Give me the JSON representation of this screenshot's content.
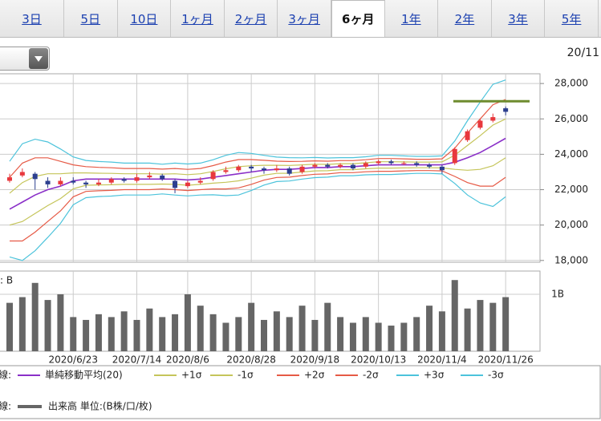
{
  "tabs": [
    "3日",
    "5日",
    "10日",
    "1ヶ月",
    "2ヶ月",
    "3ヶ月",
    "6ヶ月",
    "1年",
    "2年",
    "3年",
    "5年"
  ],
  "selected_tab": 6,
  "date_label": "20/11",
  "chart_data": {
    "type": "candlestick",
    "categories": [
      null,
      null,
      null,
      null,
      null,
      "2020/6/23",
      null,
      null,
      null,
      null,
      "2020/7/14",
      null,
      null,
      null,
      "2020/8/6",
      null,
      null,
      null,
      null,
      "2020/8/28",
      null,
      null,
      null,
      null,
      "2020/9/18",
      null,
      null,
      null,
      null,
      "2020/10/13",
      null,
      null,
      null,
      null,
      "2020/11/4",
      null,
      null,
      null,
      null,
      "2020/11/26"
    ],
    "up_color": "#e8383d",
    "down_color": "#2c3f8f",
    "open": [
      22500,
      22800,
      22900,
      22500,
      22300,
      22500,
      22400,
      22300,
      22400,
      22600,
      22500,
      22700,
      22800,
      22500,
      22200,
      22400,
      22600,
      23000,
      23100,
      23300,
      23200,
      23100,
      23200,
      23000,
      23300,
      23400,
      23300,
      23400,
      23300,
      23500,
      23600,
      23500,
      23500,
      23400,
      23300,
      23500,
      24800,
      25500,
      25900,
      26600
    ],
    "high": [
      22900,
      23200,
      23000,
      22700,
      22700,
      22700,
      22500,
      22600,
      22700,
      22700,
      22900,
      23000,
      22900,
      22600,
      22500,
      22700,
      23100,
      23300,
      23400,
      23400,
      23300,
      23400,
      23300,
      23400,
      23500,
      23500,
      23500,
      23500,
      23600,
      23700,
      23700,
      23600,
      23600,
      23500,
      23400,
      24400,
      25400,
      26000,
      26300,
      26700
    ],
    "low": [
      22400,
      22700,
      22000,
      22100,
      22200,
      22300,
      22100,
      22200,
      22300,
      22400,
      22400,
      22600,
      22500,
      21800,
      22100,
      22300,
      22500,
      22900,
      23000,
      23000,
      22900,
      23000,
      22800,
      22900,
      23200,
      23200,
      23200,
      23100,
      23200,
      23400,
      23400,
      23400,
      23300,
      23200,
      22900,
      23400,
      24700,
      25400,
      25800,
      26200
    ],
    "close": [
      22700,
      23000,
      22600,
      22300,
      22500,
      22400,
      22300,
      22400,
      22600,
      22500,
      22700,
      22800,
      22600,
      22100,
      22400,
      22500,
      23000,
      23100,
      23300,
      23200,
      23100,
      23200,
      22900,
      23300,
      23400,
      23300,
      23400,
      23200,
      23500,
      23600,
      23500,
      23500,
      23400,
      23300,
      23100,
      24300,
      25300,
      25900,
      26100,
      26400
    ],
    "series": [
      {
        "name": "単純移動平均(20)",
        "color": "#8a2fc8",
        "values": [
          20900,
          21300,
          21700,
          22000,
          22200,
          22500,
          22600,
          22600,
          22600,
          22600,
          22600,
          22600,
          22600,
          22600,
          22550,
          22600,
          22700,
          22800,
          22900,
          23000,
          23100,
          23150,
          23150,
          23200,
          23250,
          23250,
          23300,
          23300,
          23350,
          23400,
          23400,
          23400,
          23400,
          23400,
          23400,
          23550,
          23800,
          24100,
          24500,
          24900
        ]
      },
      {
        "name": "+1σ",
        "color": "#c5c55a",
        "values": [
          21800,
          22400,
          22750,
          22900,
          22900,
          22950,
          22950,
          22930,
          22920,
          22900,
          22900,
          22900,
          22880,
          22900,
          22850,
          22900,
          23030,
          23180,
          23300,
          23350,
          23380,
          23380,
          23370,
          23400,
          23440,
          23430,
          23470,
          23470,
          23520,
          23580,
          23580,
          23570,
          23560,
          23560,
          23570,
          23950,
          24500,
          25050,
          25650,
          26000
        ]
      },
      {
        "name": "-1σ",
        "color": "#c5c55a",
        "values": [
          20000,
          20200,
          20650,
          21100,
          21500,
          22050,
          22250,
          22270,
          22280,
          22300,
          22300,
          22300,
          22320,
          22300,
          22250,
          22300,
          22370,
          22420,
          22500,
          22650,
          22820,
          22920,
          22930,
          23000,
          23060,
          23070,
          23130,
          23130,
          23180,
          23220,
          23220,
          23230,
          23240,
          23240,
          23230,
          23150,
          23100,
          23150,
          23350,
          23800
        ]
      },
      {
        "name": "+2σ",
        "color": "#e65a46",
        "values": [
          22700,
          23500,
          23800,
          23800,
          23600,
          23400,
          23300,
          23260,
          23240,
          23200,
          23200,
          23200,
          23160,
          23200,
          23150,
          23200,
          23360,
          23560,
          23700,
          23700,
          23660,
          23610,
          23590,
          23600,
          23630,
          23610,
          23640,
          23640,
          23690,
          23760,
          23760,
          23740,
          23720,
          23720,
          23740,
          24350,
          25200,
          26000,
          26800,
          27100
        ]
      },
      {
        "name": "-2σ",
        "color": "#e65a46",
        "values": [
          19100,
          19100,
          19600,
          20200,
          20800,
          21600,
          21900,
          21940,
          21960,
          22000,
          22000,
          22000,
          22040,
          22000,
          21950,
          22000,
          22040,
          22040,
          22100,
          22300,
          22540,
          22690,
          22710,
          22800,
          22870,
          22890,
          22960,
          22960,
          23010,
          23040,
          23040,
          23060,
          23080,
          23080,
          23060,
          22750,
          22400,
          22200,
          22200,
          22700
        ]
      },
      {
        "name": "+3σ",
        "color": "#4cc3db",
        "values": [
          23600,
          24600,
          24850,
          24700,
          24300,
          23850,
          23650,
          23590,
          23560,
          23500,
          23500,
          23500,
          23440,
          23500,
          23450,
          23500,
          23690,
          23940,
          24100,
          24050,
          23940,
          23840,
          23810,
          23800,
          23820,
          23790,
          23810,
          23810,
          23860,
          23940,
          23940,
          23910,
          23880,
          23880,
          23910,
          24750,
          25900,
          26950,
          27950,
          28200
        ]
      },
      {
        "name": "-3σ",
        "color": "#4cc3db",
        "values": [
          18200,
          18000,
          18550,
          19300,
          20100,
          21150,
          21550,
          21610,
          21640,
          21700,
          21700,
          21700,
          21760,
          21700,
          21650,
          21700,
          21710,
          21660,
          21700,
          21950,
          22260,
          22460,
          22490,
          22600,
          22680,
          22710,
          22790,
          22790,
          22840,
          22860,
          22860,
          22890,
          22920,
          22920,
          22890,
          22350,
          21700,
          21250,
          21050,
          21600
        ]
      }
    ],
    "hline": {
      "value": 27000,
      "color": "#6e8c2f"
    },
    "ylim": [
      17900,
      28550
    ],
    "yticks": [
      {
        "value": 18000,
        "label": "18,000"
      },
      {
        "value": 20000,
        "label": "20,000"
      },
      {
        "value": 22000,
        "label": "22,000"
      },
      {
        "value": 24000,
        "label": "24,000"
      },
      {
        "value": 26000,
        "label": "26,000"
      },
      {
        "value": 28000,
        "label": "28,000"
      }
    ],
    "volume": {
      "name": "出来高 単位:(B株/口/枚)",
      "color": "#666666",
      "axis_label": ": B",
      "values": [
        0.85,
        0.95,
        1.2,
        0.9,
        1.0,
        0.6,
        0.55,
        0.65,
        0.6,
        0.7,
        0.55,
        0.75,
        0.6,
        0.65,
        1.0,
        0.8,
        0.65,
        0.5,
        0.6,
        0.85,
        0.55,
        0.7,
        0.6,
        0.8,
        0.55,
        0.85,
        0.6,
        0.5,
        0.6,
        0.5,
        0.45,
        0.5,
        0.6,
        0.8,
        0.7,
        1.25,
        0.75,
        0.9,
        0.85,
        0.95
      ],
      "ylim": [
        0,
        1.38
      ],
      "yticks": [
        {
          "value": 1,
          "label": "1B"
        }
      ]
    },
    "legend_labels": [
      "線:",
      "線:"
    ],
    "grid": true
  }
}
